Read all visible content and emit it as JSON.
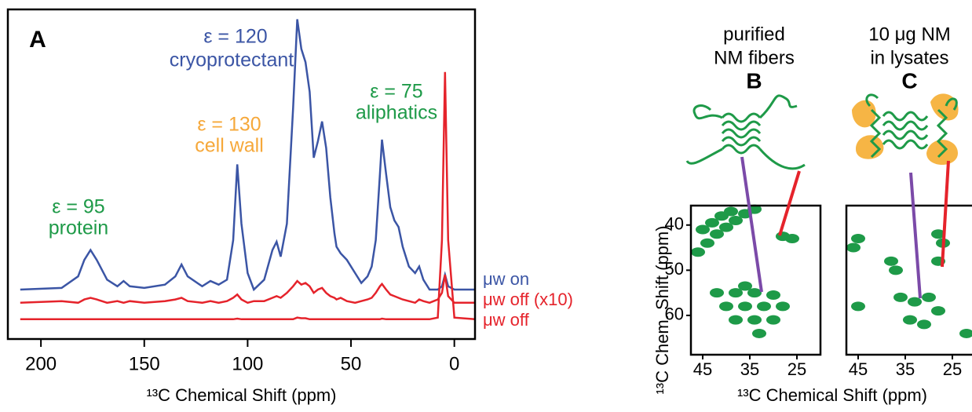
{
  "chart_data": [
    {
      "type": "line",
      "label": "A",
      "xlabel": "¹³C Chemical Shift (ppm)",
      "xlim": [
        216,
        -10
      ],
      "xticks": [
        200,
        150,
        100,
        50,
        0
      ],
      "ylim": [
        0,
        100
      ],
      "x": [
        210,
        190,
        182,
        179,
        176,
        173,
        168,
        163,
        160,
        157,
        150,
        140,
        135,
        132,
        129,
        122,
        118,
        114,
        110,
        107,
        105,
        103,
        100,
        97,
        92,
        88,
        86,
        84,
        81,
        78,
        76,
        74,
        72,
        70,
        68,
        66,
        64,
        62,
        60,
        58,
        57,
        55,
        52,
        48,
        45,
        42,
        40,
        38,
        36,
        35,
        33,
        31,
        29,
        27,
        25,
        22,
        19,
        17,
        15,
        12,
        8,
        6,
        4.5,
        3,
        0,
        -10
      ],
      "series": [
        {
          "name": "μw on",
          "color": "#3b55a5",
          "values": [
            15,
            15.5,
            19,
            24,
            27,
            24,
            18,
            16,
            17.6,
            16,
            15.5,
            16.5,
            19,
            22.6,
            19,
            16,
            17.6,
            16.5,
            18,
            30,
            53,
            35,
            20,
            15,
            18,
            27,
            29.5,
            25,
            35,
            70,
            97,
            88,
            84,
            75,
            55,
            60,
            66,
            58,
            43,
            32,
            28,
            26,
            24,
            20,
            17,
            19,
            22,
            30,
            50,
            60.5,
            50,
            40,
            36,
            34,
            28,
            22,
            20,
            22,
            18,
            15,
            15,
            16,
            19.5,
            16,
            15,
            15
          ]
        },
        {
          "name": "μw off (x10)",
          "color": "#e5232b",
          "values": [
            11,
            11.5,
            11,
            12,
            12.5,
            12,
            11,
            11.5,
            11,
            11.5,
            11,
            11.5,
            12,
            12.5,
            11.5,
            11,
            11.5,
            11,
            11.5,
            12.5,
            13.5,
            12,
            11,
            11.5,
            11.5,
            12.5,
            13,
            12.5,
            14,
            16,
            17.6,
            16.5,
            17,
            16,
            14,
            15,
            15.5,
            14,
            13,
            12.5,
            12,
            12.5,
            11.5,
            11,
            11.5,
            12,
            12.5,
            14,
            16,
            16.7,
            15,
            13.5,
            13,
            12.5,
            12,
            11.5,
            11,
            12,
            11.5,
            11,
            12,
            14,
            19.5,
            13,
            11,
            11
          ]
        },
        {
          "name": "μw off",
          "color": "#e5232b",
          "values": [
            6,
            6,
            6,
            6,
            6,
            6,
            6,
            6,
            6,
            6,
            6,
            6,
            6,
            6,
            6,
            6,
            6,
            6,
            6,
            6,
            6.2,
            6,
            6,
            6,
            6,
            6,
            6,
            6,
            6,
            6,
            6.5,
            6.3,
            6.3,
            6,
            6,
            6,
            6,
            6,
            6,
            6,
            6,
            6,
            6,
            6,
            6,
            6,
            6,
            6,
            6,
            6.2,
            6,
            6,
            6,
            6,
            6,
            6,
            6,
            6,
            6,
            6,
            6.5,
            30,
            81,
            30,
            6.5,
            6
          ]
        }
      ],
      "annotations": [
        {
          "text": "ε = 95",
          "color": "#1e9a48"
        },
        {
          "text": "protein",
          "color": "#1e9a48"
        },
        {
          "text": "ε = 130",
          "color": "#f6a83a"
        },
        {
          "text": "cell wall",
          "color": "#f6a83a"
        },
        {
          "text": "ε = 120",
          "color": "#3b55a5"
        },
        {
          "text": "cryoprotectant",
          "color": "#3b55a5"
        },
        {
          "text": "ε = 75",
          "color": "#1e9a48"
        },
        {
          "text": "aliphatics",
          "color": "#1e9a48"
        }
      ]
    },
    {
      "type": "contour",
      "label": "B",
      "title": [
        "purified",
        "NM fibers"
      ],
      "color": "#1e9a48",
      "xlabel": "¹³C Chemical Shift (ppm)",
      "ylabel": "¹³C Chem. Shift (ppm)",
      "xlim": [
        47.5,
        20
      ],
      "xticks": [
        45,
        35,
        25
      ],
      "ylim": [
        35.7,
        68.7
      ],
      "yticks": [
        40,
        50,
        60
      ],
      "x": [
        46,
        44,
        42,
        40,
        38,
        36,
        34,
        45,
        43,
        41,
        39,
        28,
        26,
        42,
        38,
        34,
        30,
        40,
        36,
        32,
        28,
        38,
        34,
        30,
        33,
        36
      ],
      "y": [
        46,
        44,
        42,
        40.5,
        39,
        37.5,
        36.5,
        41,
        39.5,
        38,
        37,
        42.5,
        43,
        55,
        55,
        55,
        55.5,
        58,
        58,
        58,
        58,
        61,
        61,
        61,
        64,
        53.5
      ]
    },
    {
      "type": "contour",
      "label": "C",
      "title": [
        "10 μg NM",
        "in lysates"
      ],
      "color": "#1e9a48",
      "xlim": [
        47.5,
        20
      ],
      "xticks": [
        45,
        35,
        25
      ],
      "ylim": [
        35.7,
        68.7
      ],
      "x": [
        45,
        46,
        38,
        37,
        28,
        27,
        28,
        45,
        36,
        33,
        30,
        28,
        31,
        34,
        22
      ],
      "y": [
        43,
        45,
        48,
        50,
        42,
        44,
        48,
        58,
        56,
        57,
        56,
        59,
        62,
        61,
        64
      ]
    }
  ]
}
